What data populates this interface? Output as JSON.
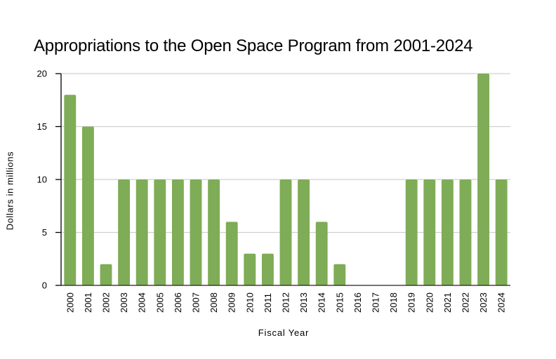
{
  "chart_data": {
    "type": "bar",
    "title": "Appropriations to the Open Space Program from 2001-2024",
    "xlabel": "Fiscal Year",
    "ylabel": "Dollars in millions",
    "categories": [
      "2000",
      "2001",
      "2002",
      "2003",
      "2004",
      "2005",
      "2006",
      "2007",
      "2008",
      "2009",
      "2010",
      "2011",
      "2012",
      "2013",
      "2014",
      "2015",
      "2016",
      "2017",
      "2018",
      "2019",
      "2020",
      "2021",
      "2022",
      "2023",
      "2024"
    ],
    "values": [
      18,
      15,
      2,
      10,
      10,
      10,
      10,
      10,
      10,
      6,
      3,
      3,
      10,
      10,
      6,
      2,
      0,
      0,
      0,
      10,
      10,
      10,
      10,
      20,
      10
    ],
    "ylim": [
      0,
      20
    ],
    "yticks": [
      0,
      5,
      10,
      15,
      20
    ],
    "grid": true,
    "legend": "none",
    "bar_color": "#7fac56",
    "grid_color": "#d0d0d0",
    "axis_color": "#000000"
  }
}
